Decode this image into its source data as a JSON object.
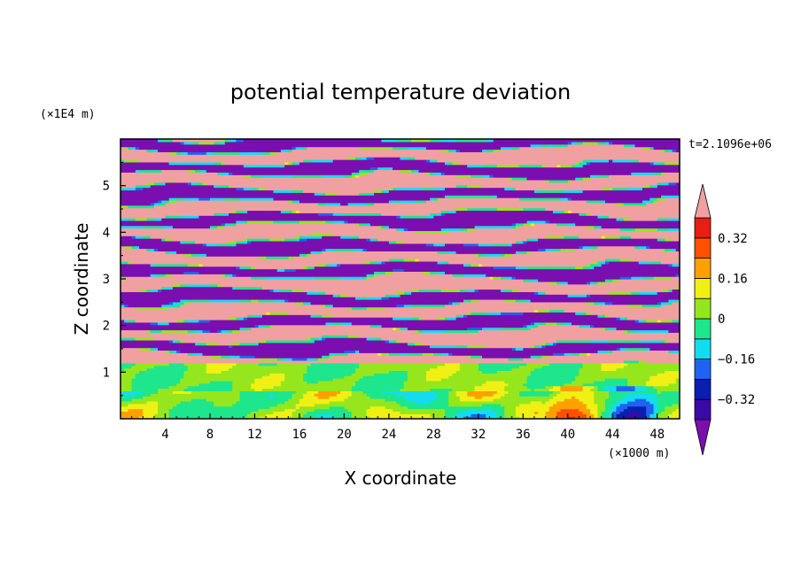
{
  "chart_data": {
    "type": "heatmap",
    "title": "potential temperature deviation",
    "xlabel": "X coordinate",
    "ylabel": "Z coordinate",
    "x_unit": "(×1000 m)",
    "y_unit": "(×1E4 m)",
    "time_label": "t=2.1096e+06",
    "xlim": [
      0,
      50
    ],
    "ylim": [
      0,
      6
    ],
    "x_ticks": [
      4,
      8,
      12,
      16,
      20,
      24,
      28,
      32,
      36,
      40,
      44,
      48
    ],
    "y_ticks": [
      1,
      2,
      3,
      4,
      5
    ],
    "colorbar": {
      "levels": [
        -0.4,
        -0.32,
        -0.24,
        -0.16,
        -0.08,
        0,
        0.08,
        0.16,
        0.24,
        0.32,
        0.4
      ],
      "tick_labels": [
        "0.32",
        "0.16",
        "0",
        "−0.16",
        "−0.32"
      ],
      "colors": [
        "#7a0fb0",
        "#3a0aa8",
        "#0a1eb0",
        "#1f63f0",
        "#14dcf0",
        "#1ee68c",
        "#96e61e",
        "#f0f014",
        "#ffa000",
        "#ff5000",
        "#e61e14",
        "#f0a0a0"
      ],
      "extend": "both"
    }
  }
}
